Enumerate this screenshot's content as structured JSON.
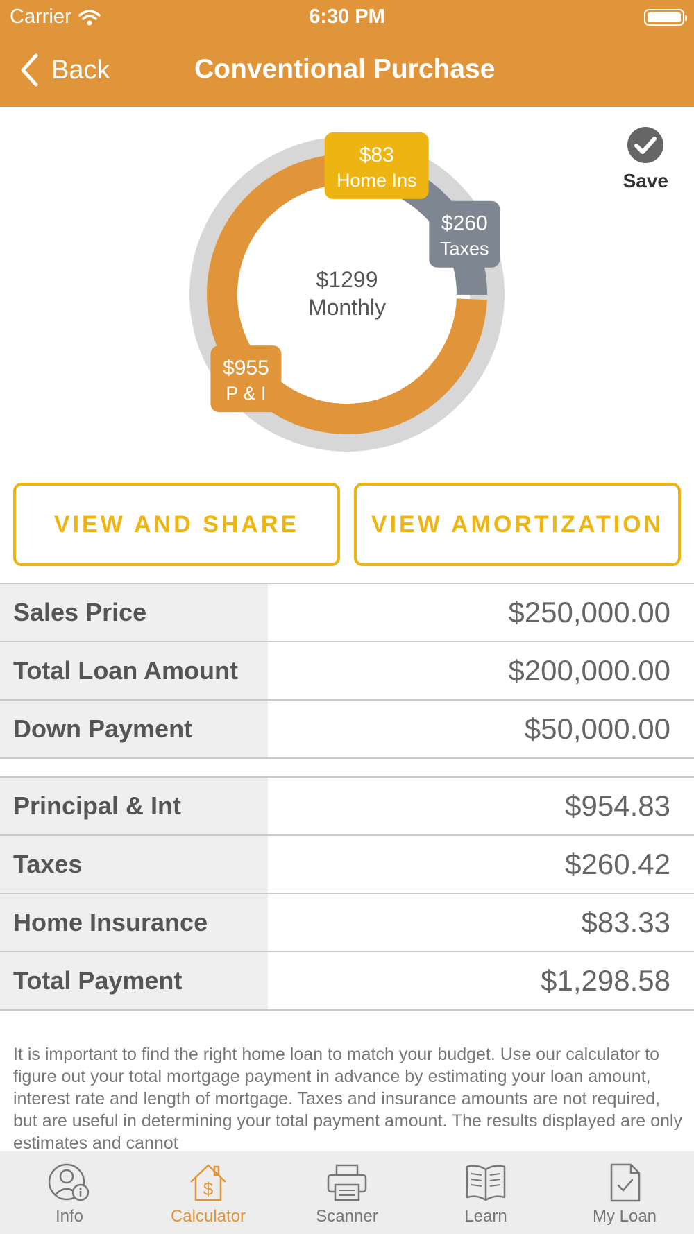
{
  "status_bar": {
    "carrier": "Carrier",
    "time": "6:30 PM"
  },
  "nav": {
    "back_label": "Back",
    "title": "Conventional Purchase"
  },
  "save_label": "Save",
  "chart_data": {
    "type": "pie",
    "center_value": "$1299",
    "center_label": "Monthly",
    "slices": [
      {
        "name": "P & I",
        "label": "$955",
        "value": 954.83,
        "color": "#E0953A"
      },
      {
        "name": "Taxes",
        "label": "$260",
        "value": 260.42,
        "color": "#7E8791"
      },
      {
        "name": "Home Ins",
        "label": "$83",
        "value": 83.33,
        "color": "#EDB412"
      }
    ]
  },
  "buttons": {
    "view_share": "VIEW AND SHARE",
    "view_amortization": "VIEW AMORTIZATION"
  },
  "loan_rows": [
    {
      "label": "Sales Price",
      "value": "$250,000.00"
    },
    {
      "label": "Total Loan Amount",
      "value": "$200,000.00"
    },
    {
      "label": "Down Payment",
      "value": "$50,000.00"
    }
  ],
  "payment_rows": [
    {
      "label": "Principal & Int",
      "value": "$954.83"
    },
    {
      "label": "Taxes",
      "value": "$260.42"
    },
    {
      "label": "Home Insurance",
      "value": "$83.33"
    },
    {
      "label": "Total Payment",
      "value": "$1,298.58"
    }
  ],
  "disclaimer": "It is important to find the right home loan to match your budget. Use our calculator to figure out your total mortgage payment in advance by estimating your loan amount, interest rate and length of mortgage. Taxes and insurance amounts are not required, but are useful in determining your total payment amount.  The results displayed are only estimates and cannot",
  "tabs": [
    {
      "label": "Info",
      "icon": "user-info-icon",
      "active": false
    },
    {
      "label": "Calculator",
      "icon": "house-dollar-icon",
      "active": true
    },
    {
      "label": "Scanner",
      "icon": "printer-icon",
      "active": false
    },
    {
      "label": "Learn",
      "icon": "book-icon",
      "active": false
    },
    {
      "label": "My Loan",
      "icon": "document-check-icon",
      "active": false
    }
  ],
  "colors": {
    "accent": "#E0953A",
    "button": "#EDB412",
    "taxes": "#7E8791"
  }
}
